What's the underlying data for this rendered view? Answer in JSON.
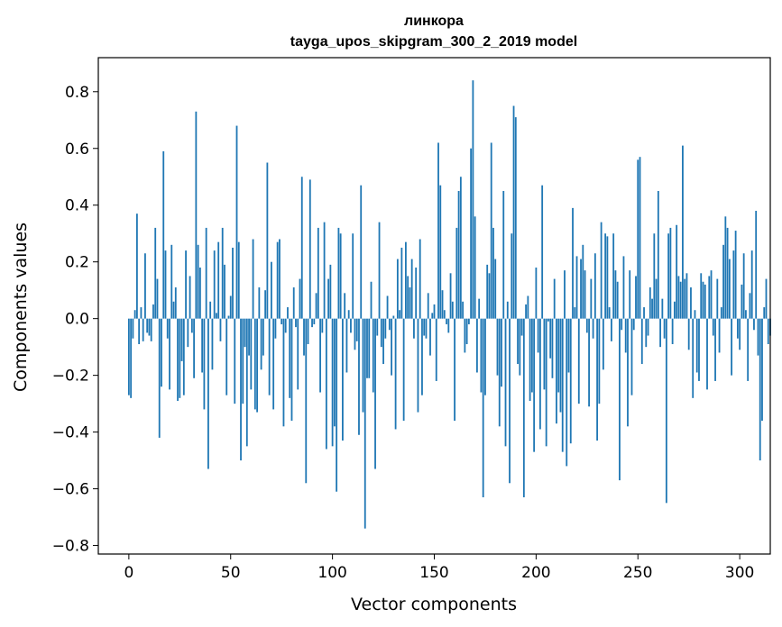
{
  "chart_data": {
    "type": "bar",
    "title": [
      "линкора",
      "tayga_upos_skipgram_300_2_2019 model"
    ],
    "xlabel": "Vector components",
    "ylabel": "Components values",
    "xlim": [
      -15,
      315
    ],
    "ylim": [
      -0.83,
      0.92
    ],
    "xticks": [
      0,
      50,
      100,
      150,
      200,
      250,
      300
    ],
    "yticks": [
      -0.8,
      -0.6,
      -0.4,
      -0.2,
      0.0,
      0.2,
      0.4,
      0.6,
      0.8
    ],
    "ytick_labels": [
      "−0.8",
      "−0.6",
      "−0.4",
      "−0.2",
      "0.0",
      "0.2",
      "0.4",
      "0.6",
      "0.8"
    ],
    "bar_color": "#1f77b4",
    "values": [
      -0.27,
      -0.28,
      -0.07,
      0.03,
      0.37,
      -0.09,
      0.04,
      -0.08,
      0.23,
      -0.05,
      -0.06,
      -0.08,
      0.05,
      0.32,
      0.14,
      -0.42,
      -0.24,
      0.59,
      0.24,
      -0.07,
      -0.25,
      0.26,
      0.06,
      0.11,
      -0.29,
      -0.28,
      -0.15,
      -0.27,
      0.24,
      -0.1,
      0.15,
      -0.05,
      -0.21,
      0.73,
      0.26,
      0.18,
      -0.19,
      -0.32,
      0.32,
      -0.53,
      0.06,
      -0.18,
      0.24,
      0.02,
      0.27,
      -0.08,
      0.32,
      0.19,
      -0.27,
      0.01,
      0.08,
      0.25,
      -0.3,
      0.68,
      0.27,
      -0.5,
      -0.3,
      -0.1,
      -0.45,
      -0.13,
      -0.25,
      0.28,
      -0.32,
      -0.33,
      0.11,
      -0.18,
      -0.13,
      0.1,
      0.55,
      -0.27,
      0.2,
      -0.32,
      -0.07,
      0.27,
      0.28,
      -0.02,
      -0.38,
      -0.05,
      0.04,
      -0.28,
      -0.36,
      0.11,
      -0.03,
      -0.25,
      0.14,
      0.5,
      -0.13,
      -0.58,
      -0.09,
      0.49,
      -0.03,
      -0.02,
      0.09,
      0.32,
      -0.26,
      -0.05,
      0.34,
      -0.46,
      0.14,
      0.19,
      -0.45,
      -0.38,
      -0.61,
      0.32,
      0.3,
      -0.43,
      0.09,
      -0.19,
      0.03,
      -0.05,
      0.3,
      -0.11,
      -0.08,
      -0.41,
      0.47,
      -0.33,
      -0.74,
      -0.21,
      -0.21,
      0.13,
      -0.26,
      -0.53,
      -0.06,
      0.34,
      -0.1,
      -0.16,
      -0.07,
      0.08,
      -0.04,
      -0.2,
      0.01,
      -0.39,
      0.21,
      0.03,
      0.25,
      -0.36,
      0.27,
      0.15,
      0.11,
      0.21,
      -0.07,
      0.18,
      -0.33,
      0.28,
      -0.27,
      -0.06,
      -0.07,
      0.09,
      -0.13,
      0.02,
      0.05,
      -0.22,
      0.62,
      0.47,
      0.1,
      0.03,
      -0.02,
      -0.05,
      0.16,
      0.06,
      -0.36,
      0.32,
      0.45,
      0.5,
      0.06,
      -0.12,
      -0.09,
      -0.02,
      0.6,
      0.84,
      0.36,
      -0.19,
      0.07,
      -0.26,
      -0.63,
      -0.27,
      0.19,
      0.16,
      0.62,
      0.32,
      0.21,
      -0.2,
      -0.38,
      -0.24,
      0.45,
      -0.45,
      0.06,
      -0.58,
      0.3,
      0.75,
      0.71,
      -0.16,
      -0.2,
      -0.06,
      -0.63,
      0.05,
      0.08,
      -0.29,
      -0.26,
      -0.47,
      0.18,
      -0.12,
      -0.39,
      0.47,
      -0.25,
      -0.45,
      -0.01,
      -0.14,
      -0.21,
      0.14,
      -0.37,
      -0.26,
      -0.33,
      -0.47,
      0.17,
      -0.52,
      -0.19,
      -0.44,
      0.39,
      0.04,
      0.22,
      -0.3,
      0.21,
      0.26,
      0.17,
      -0.05,
      -0.31,
      0.14,
      -0.07,
      0.23,
      -0.43,
      -0.3,
      0.34,
      -0.18,
      0.3,
      0.29,
      0.04,
      -0.08,
      0.3,
      0.17,
      0.13,
      -0.57,
      -0.04,
      0.22,
      -0.12,
      -0.38,
      0.17,
      -0.27,
      -0.04,
      0.15,
      0.56,
      0.57,
      -0.16,
      0.04,
      -0.1,
      -0.06,
      0.11,
      0.07,
      0.3,
      0.14,
      0.45,
      -0.1,
      0.07,
      -0.07,
      -0.65,
      0.3,
      0.32,
      -0.09,
      0.06,
      0.33,
      0.15,
      0.13,
      0.61,
      0.14,
      0.16,
      -0.11,
      0.11,
      -0.28,
      0.03,
      -0.19,
      -0.22,
      0.16,
      0.13,
      0.12,
      -0.25,
      0.15,
      0.17,
      -0.06,
      -0.22,
      0.14,
      -0.12,
      0.04,
      0.26,
      0.36,
      0.32,
      0.21,
      -0.2,
      0.24,
      0.31,
      -0.07,
      -0.11,
      0.12,
      0.23,
      0.03,
      -0.22,
      0.09,
      0.24,
      -0.04,
      0.38,
      -0.13,
      -0.5,
      -0.36,
      0.04,
      0.14,
      -0.09,
      -0.06
    ]
  }
}
